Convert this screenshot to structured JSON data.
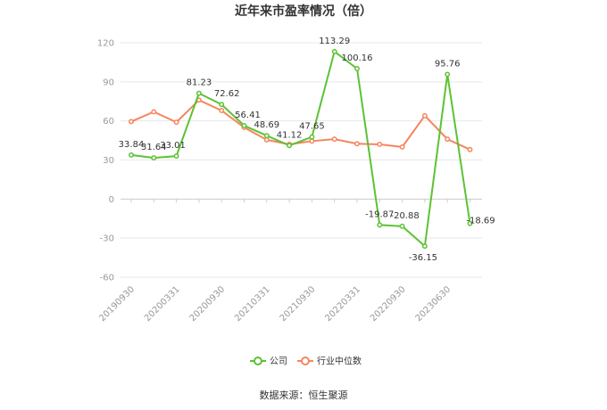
{
  "chart_data": {
    "type": "line",
    "title": "近年来市盈率情况（倍）",
    "source": "数据来源：恒生聚源",
    "ylim": [
      -60,
      120
    ],
    "yticks": [
      "120",
      "90",
      "60",
      "30",
      "0",
      "-30",
      "-60"
    ],
    "ytick_values": [
      120,
      90,
      60,
      30,
      0,
      -30,
      -60
    ],
    "xtick_labels": [
      "20190930",
      "20200331",
      "20200930",
      "20210331",
      "20210930",
      "20220331",
      "20220930",
      "20230630"
    ],
    "xtick_index": [
      0,
      2,
      4,
      6,
      8,
      10,
      12,
      14
    ],
    "point_count": 16,
    "series": [
      {
        "name": "公司",
        "color": "#5cc234",
        "values": [
          33.84,
          31.64,
          33.01,
          81.23,
          72.62,
          56.41,
          48.69,
          41.12,
          47.65,
          113.29,
          100.16,
          -19.87,
          -20.88,
          -36.15,
          95.76,
          -18.69
        ],
        "labels": [
          "33.84",
          "31.64",
          "33.01",
          "81.23",
          "72.62",
          "56.41",
          "48.69",
          "41.12",
          "47.65",
          "113.29",
          "100.16",
          "-19.87",
          "-20.88",
          "-36.15",
          "95.76",
          "-18.69"
        ]
      },
      {
        "name": "行业中位数",
        "color": "#f5855f",
        "values": [
          59.5,
          67.0,
          59.0,
          76.0,
          68.0,
          55.0,
          45.5,
          42.0,
          44.5,
          46.0,
          42.5,
          42.0,
          40.0,
          64.0,
          46.0,
          38.0
        ]
      }
    ],
    "grid": true,
    "legend_position": "bottom"
  }
}
